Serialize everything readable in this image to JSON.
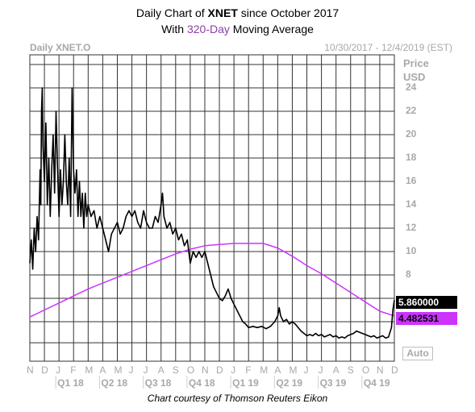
{
  "title": {
    "line1_prefix": "Daily Chart of ",
    "line1_ticker": "XNET",
    "line1_suffix": " since October 2017",
    "line2_prefix": "With ",
    "line2_accent": "320-Day",
    "line2_suffix": " Moving Average"
  },
  "header": {
    "symbol": "Daily XNET.O",
    "date_range": "10/30/2017 - 12/4/2019 (EST)"
  },
  "credit": "Chart courtesy of Thomson Reuters Eikon",
  "auto_label": "Auto",
  "colors": {
    "price": "#000000",
    "moving_average": "#cc33ff",
    "grid": "#333333",
    "accent_text": "#8b3fa8"
  },
  "chart_data": {
    "type": "line",
    "yaxis_title": [
      "Price",
      "USD"
    ],
    "ylim": [
      2,
      26
    ],
    "yticks": [
      8,
      10,
      12,
      14,
      16,
      18,
      20,
      22,
      24
    ],
    "xaxis_months": [
      "N",
      "D",
      "J",
      "F",
      "M",
      "A",
      "M",
      "J",
      "J",
      "A",
      "S",
      "O",
      "N",
      "D",
      "J",
      "F",
      "M",
      "A",
      "M",
      "J",
      "J",
      "A",
      "S",
      "O",
      "N",
      "D"
    ],
    "quarters": [
      "Q1 18",
      "Q2 18",
      "Q3 18",
      "Q4 18",
      "Q1 19",
      "Q2 19",
      "Q3 19",
      "Q4 19"
    ],
    "grid": true,
    "last_price_label": "5.860000",
    "last_ma_label": "4.482531",
    "series": [
      {
        "name": "320-Day",
        "values": [
          [
            0,
            4.4
          ],
          [
            1,
            5.0
          ],
          [
            2,
            5.6
          ],
          [
            3,
            6.2
          ],
          [
            4,
            6.8
          ],
          [
            5,
            7.3
          ],
          [
            6,
            7.8
          ],
          [
            7,
            8.3
          ],
          [
            8,
            8.8
          ],
          [
            9,
            9.3
          ],
          [
            10,
            9.8
          ],
          [
            11,
            10.2
          ],
          [
            12,
            10.5
          ],
          [
            13,
            10.6
          ],
          [
            14,
            10.7
          ],
          [
            15,
            10.7
          ],
          [
            16,
            10.7
          ],
          [
            17,
            10.3
          ],
          [
            18,
            9.6
          ],
          [
            19,
            8.8
          ],
          [
            20,
            8.1
          ],
          [
            21,
            7.3
          ],
          [
            22,
            6.5
          ],
          [
            23,
            5.7
          ],
          [
            24,
            4.9
          ],
          [
            25,
            4.5
          ]
        ]
      },
      {
        "values": [
          [
            0,
            9
          ],
          [
            0.1,
            11
          ],
          [
            0.2,
            8.5
          ],
          [
            0.3,
            12
          ],
          [
            0.4,
            10
          ],
          [
            0.5,
            13
          ],
          [
            0.6,
            11
          ],
          [
            0.7,
            17
          ],
          [
            0.75,
            14
          ],
          [
            0.8,
            22
          ],
          [
            0.85,
            24
          ],
          [
            0.9,
            19
          ],
          [
            1.0,
            16
          ],
          [
            1.1,
            21
          ],
          [
            1.2,
            14
          ],
          [
            1.3,
            18
          ],
          [
            1.4,
            13
          ],
          [
            1.5,
            17
          ],
          [
            1.6,
            20
          ],
          [
            1.7,
            15
          ],
          [
            1.8,
            22
          ],
          [
            1.9,
            17
          ],
          [
            2.0,
            13
          ],
          [
            2.1,
            17
          ],
          [
            2.2,
            14
          ],
          [
            2.3,
            16
          ],
          [
            2.4,
            20
          ],
          [
            2.5,
            16
          ],
          [
            2.6,
            14
          ],
          [
            2.7,
            18
          ],
          [
            2.8,
            13
          ],
          [
            2.9,
            24
          ],
          [
            3.0,
            17
          ],
          [
            3.1,
            15
          ],
          [
            3.2,
            17
          ],
          [
            3.3,
            13
          ],
          [
            3.4,
            16
          ],
          [
            3.5,
            13
          ],
          [
            3.6,
            15
          ],
          [
            3.7,
            12
          ],
          [
            3.8,
            15
          ],
          [
            3.9,
            13
          ],
          [
            4.0,
            14
          ],
          [
            4.2,
            13
          ],
          [
            4.4,
            13.5
          ],
          [
            4.6,
            12
          ],
          [
            4.8,
            13
          ],
          [
            5.0,
            12
          ],
          [
            5.2,
            11
          ],
          [
            5.4,
            10
          ],
          [
            5.6,
            11.5
          ],
          [
            5.8,
            12
          ],
          [
            6.0,
            12.5
          ],
          [
            6.2,
            11.5
          ],
          [
            6.4,
            12
          ],
          [
            6.6,
            13
          ],
          [
            6.8,
            13.5
          ],
          [
            7.0,
            13
          ],
          [
            7.2,
            13.5
          ],
          [
            7.4,
            12.5
          ],
          [
            7.6,
            12
          ],
          [
            7.8,
            13.5
          ],
          [
            8.0,
            12.5
          ],
          [
            8.2,
            12
          ],
          [
            8.4,
            12
          ],
          [
            8.6,
            13
          ],
          [
            8.8,
            12.5
          ],
          [
            9.0,
            14
          ],
          [
            9.1,
            15
          ],
          [
            9.2,
            13
          ],
          [
            9.4,
            12
          ],
          [
            9.6,
            12.5
          ],
          [
            9.8,
            11.5
          ],
          [
            10.0,
            12
          ],
          [
            10.2,
            11
          ],
          [
            10.4,
            11.5
          ],
          [
            10.6,
            10.5
          ],
          [
            10.8,
            11
          ],
          [
            11.0,
            9
          ],
          [
            11.2,
            10
          ],
          [
            11.4,
            9.5
          ],
          [
            11.6,
            10
          ],
          [
            11.8,
            9.5
          ],
          [
            12.0,
            10
          ],
          [
            12.2,
            9
          ],
          [
            12.4,
            8
          ],
          [
            12.6,
            7
          ],
          [
            12.8,
            6.5
          ],
          [
            13.0,
            6
          ],
          [
            13.2,
            5.8
          ],
          [
            13.4,
            6.2
          ],
          [
            13.6,
            6.8
          ],
          [
            13.8,
            6
          ],
          [
            14.0,
            5.5
          ],
          [
            14.2,
            5
          ],
          [
            14.4,
            4.5
          ],
          [
            14.6,
            4
          ],
          [
            14.8,
            3.8
          ],
          [
            15.0,
            3.5
          ],
          [
            15.3,
            3.6
          ],
          [
            15.6,
            3.5
          ],
          [
            15.9,
            3.6
          ],
          [
            16.2,
            3.4
          ],
          [
            16.5,
            3.6
          ],
          [
            16.8,
            4
          ],
          [
            17.0,
            4.5
          ],
          [
            17.1,
            5.2
          ],
          [
            17.2,
            4.5
          ],
          [
            17.4,
            4
          ],
          [
            17.6,
            4.2
          ],
          [
            17.8,
            3.8
          ],
          [
            18.0,
            4
          ],
          [
            18.2,
            3.8
          ],
          [
            18.4,
            3.5
          ],
          [
            18.6,
            3.2
          ],
          [
            18.8,
            3
          ],
          [
            19.0,
            2.8
          ],
          [
            19.2,
            2.9
          ],
          [
            19.4,
            2.8
          ],
          [
            19.6,
            3
          ],
          [
            19.8,
            2.8
          ],
          [
            20.0,
            2.9
          ],
          [
            20.2,
            2.7
          ],
          [
            20.4,
            2.8
          ],
          [
            20.6,
            2.9
          ],
          [
            20.8,
            2.7
          ],
          [
            21.0,
            2.8
          ],
          [
            21.2,
            2.6
          ],
          [
            21.4,
            2.7
          ],
          [
            21.6,
            2.6
          ],
          [
            21.8,
            2.8
          ],
          [
            22.0,
            2.9
          ],
          [
            22.2,
            3
          ],
          [
            22.4,
            3.2
          ],
          [
            22.6,
            3.1
          ],
          [
            22.8,
            3
          ],
          [
            23.0,
            2.9
          ],
          [
            23.2,
            2.8
          ],
          [
            23.4,
            2.7
          ],
          [
            23.6,
            2.8
          ],
          [
            23.8,
            2.6
          ],
          [
            24.0,
            2.7
          ],
          [
            24.2,
            2.8
          ],
          [
            24.4,
            2.6
          ],
          [
            24.6,
            2.7
          ],
          [
            24.8,
            3.5
          ],
          [
            24.9,
            5
          ],
          [
            25.0,
            5.86
          ]
        ]
      }
    ]
  }
}
